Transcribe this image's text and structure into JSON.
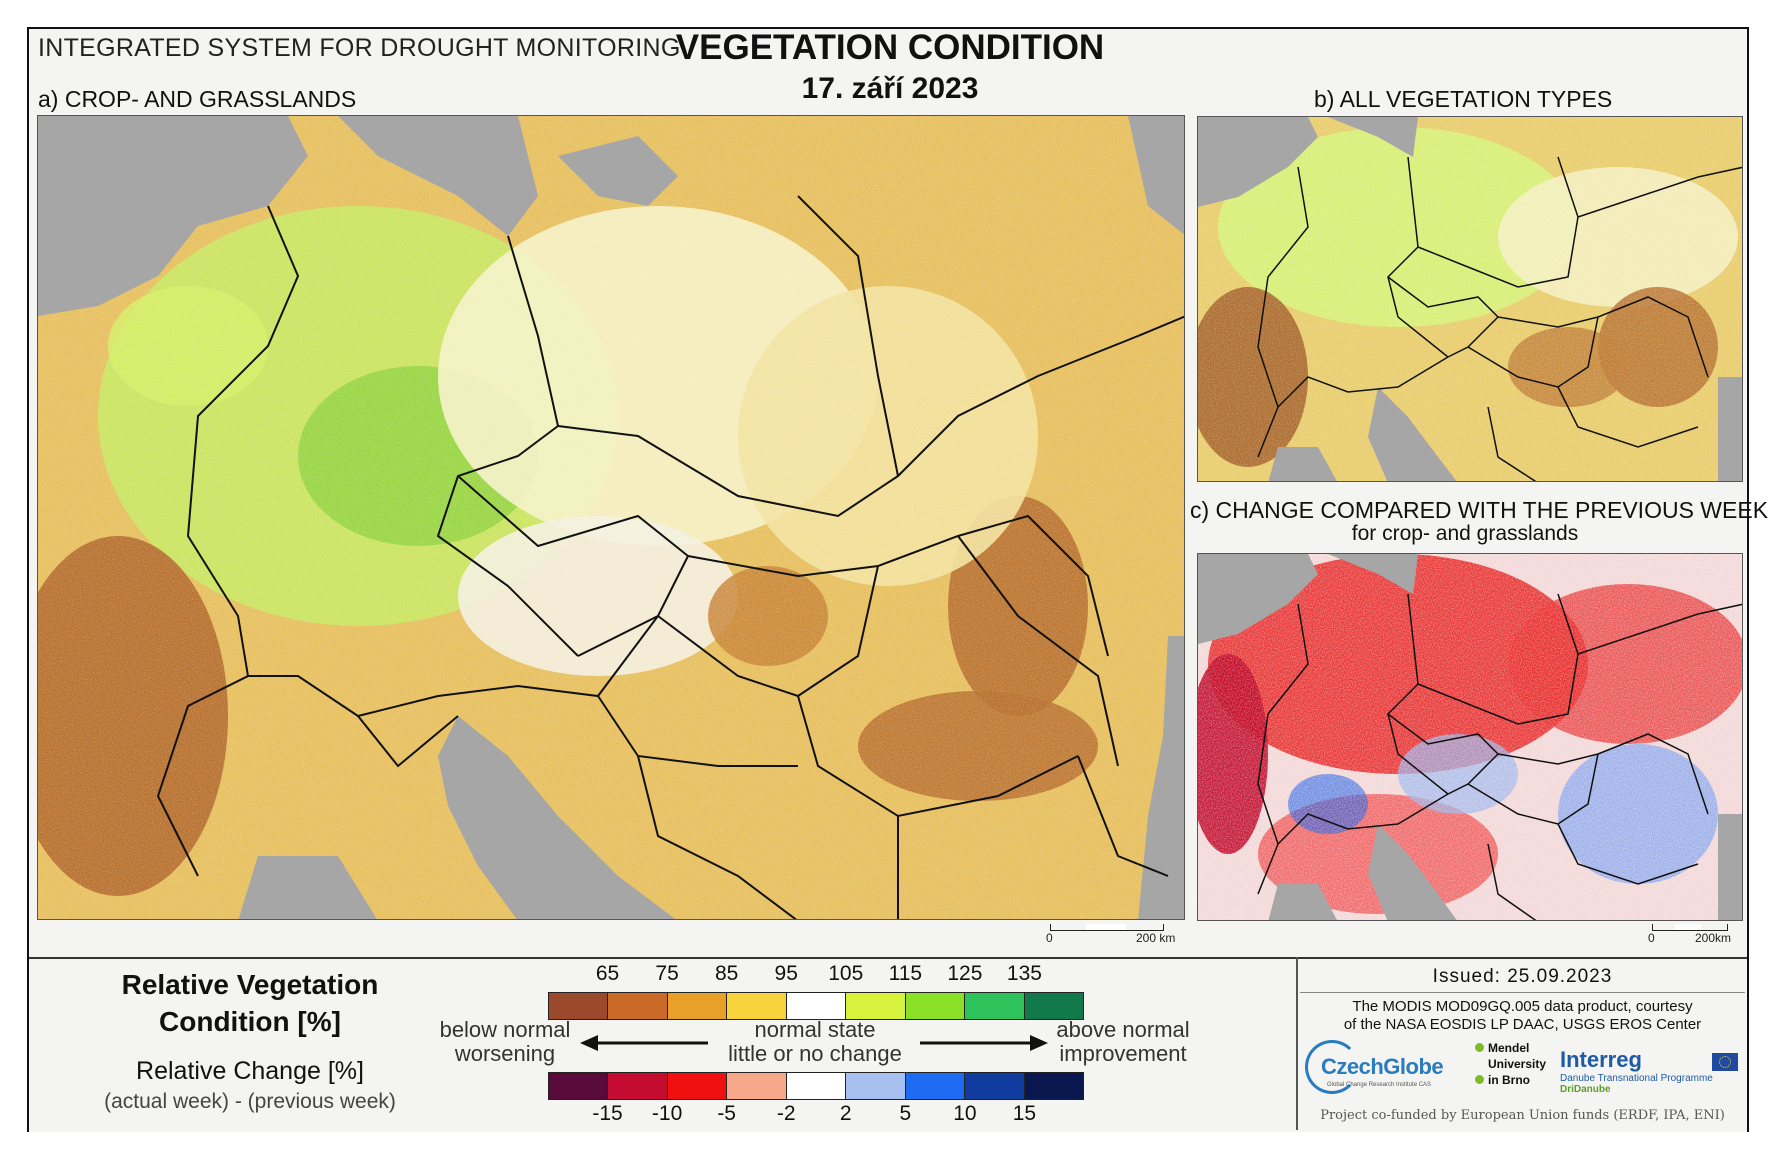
{
  "header": {
    "system": "INTEGRATED SYSTEM FOR DROUGHT MONITORING",
    "title": "VEGETATION CONDITION",
    "date": "17. září 2023"
  },
  "panels": {
    "a": {
      "label": "a) CROP- AND GRASSLANDS",
      "scale_zero": "0",
      "scale_km": "200 km"
    },
    "b": {
      "label": "b) ALL VEGETATION TYPES"
    },
    "c": {
      "label": "c) CHANGE COMPARED WITH THE PREVIOUS WEEK",
      "sublabel": "for crop- and grasslands",
      "scale_zero": "0",
      "scale_km": "200km"
    }
  },
  "legend": {
    "rvc_title": "Relative Vegetation Condition [%]",
    "rc_title": "Relative Change [%]",
    "rc_sub": "(actual week) - (previous week)",
    "top_ticks": [
      "65",
      "75",
      "85",
      "95",
      "105",
      "115",
      "125",
      "135"
    ],
    "top_colors": [
      "#9a4a2a",
      "#c96a28",
      "#e8a028",
      "#f7d23c",
      "#ffffff",
      "#d6f23c",
      "#8ae026",
      "#2ec25a",
      "#127a4a"
    ],
    "bottom_ticks": [
      "-15",
      "-10",
      "-5",
      "-2",
      "2",
      "5",
      "10",
      "15"
    ],
    "bottom_colors": [
      "#5a0a3a",
      "#c40c30",
      "#f01010",
      "#f8a88a",
      "#ffffff",
      "#a8c0f0",
      "#1e6af0",
      "#103ca0",
      "#0a1850"
    ],
    "left_top": "below normal",
    "left_bottom": "worsening",
    "mid_top": "normal state",
    "mid_bottom": "little or no change",
    "right_top": "above normal",
    "right_bottom": "improvement"
  },
  "info": {
    "issued": "Issued: 25.09.2023",
    "credit_line1": "The MODIS MOD09GQ.005 data product, courtesy",
    "credit_line2": "of the NASA EOSDIS LP DAAC, USGS EROS Center",
    "czechglobe": "CzechGlobe",
    "czechglobe_sub": "Global Change Research Institute CAS",
    "mendel_1": "Mendel",
    "mendel_2": "University",
    "mendel_3": "in Brno",
    "interreg": "Interreg",
    "interreg_sub1": "Danube Transnational Programme",
    "interreg_sub2": "DriDanube",
    "funded": "Project co-funded by European Union funds (ERDF, IPA, ENI)"
  },
  "colors": {
    "sea": "#a6a6a6",
    "border": "#111111",
    "frame": "#111111"
  }
}
